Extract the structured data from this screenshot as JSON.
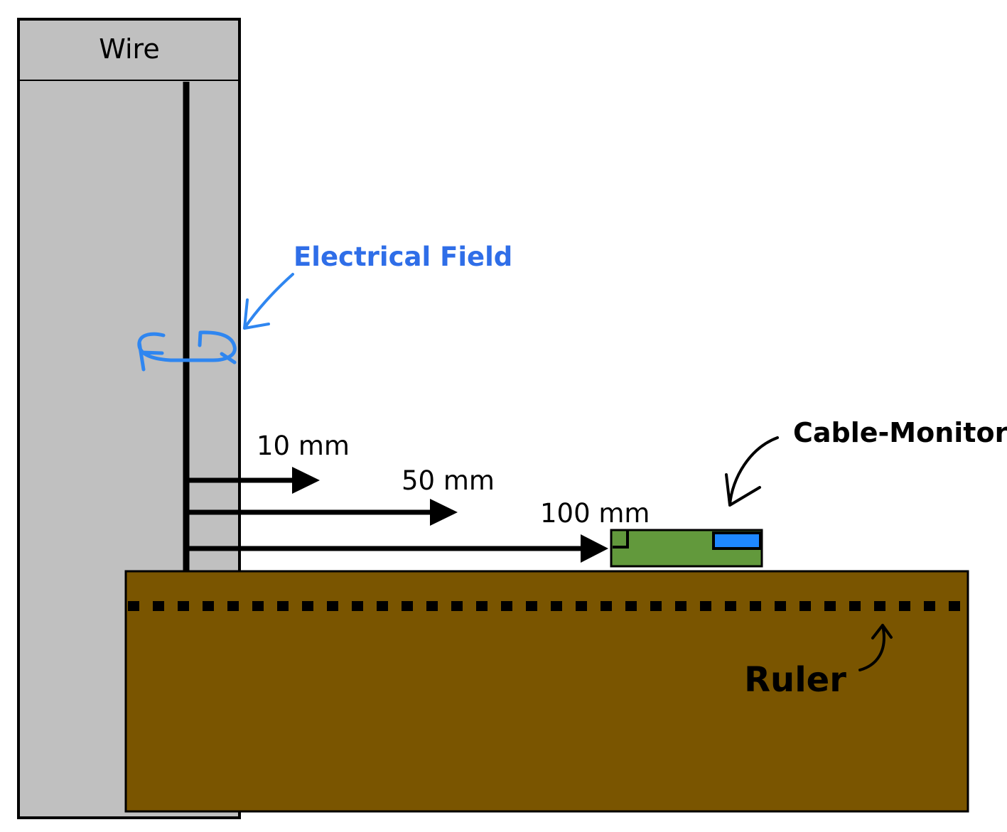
{
  "labels": {
    "wire": "Wire",
    "electrical_field": "Electrical Field",
    "distance_10": "10 mm",
    "distance_50": "50 mm",
    "distance_100": "100 mm",
    "cable_monitor": "Cable-Monitor",
    "ruler": "Ruler"
  },
  "colors": {
    "wire_fill": "#c0c0c0",
    "ruler_fill": "#7a5500",
    "monitor_fill": "#62993c",
    "monitor_indicator": "#1e88ff",
    "annotation_blue": "#2f86f0",
    "label_blue": "#2f6ee8"
  }
}
